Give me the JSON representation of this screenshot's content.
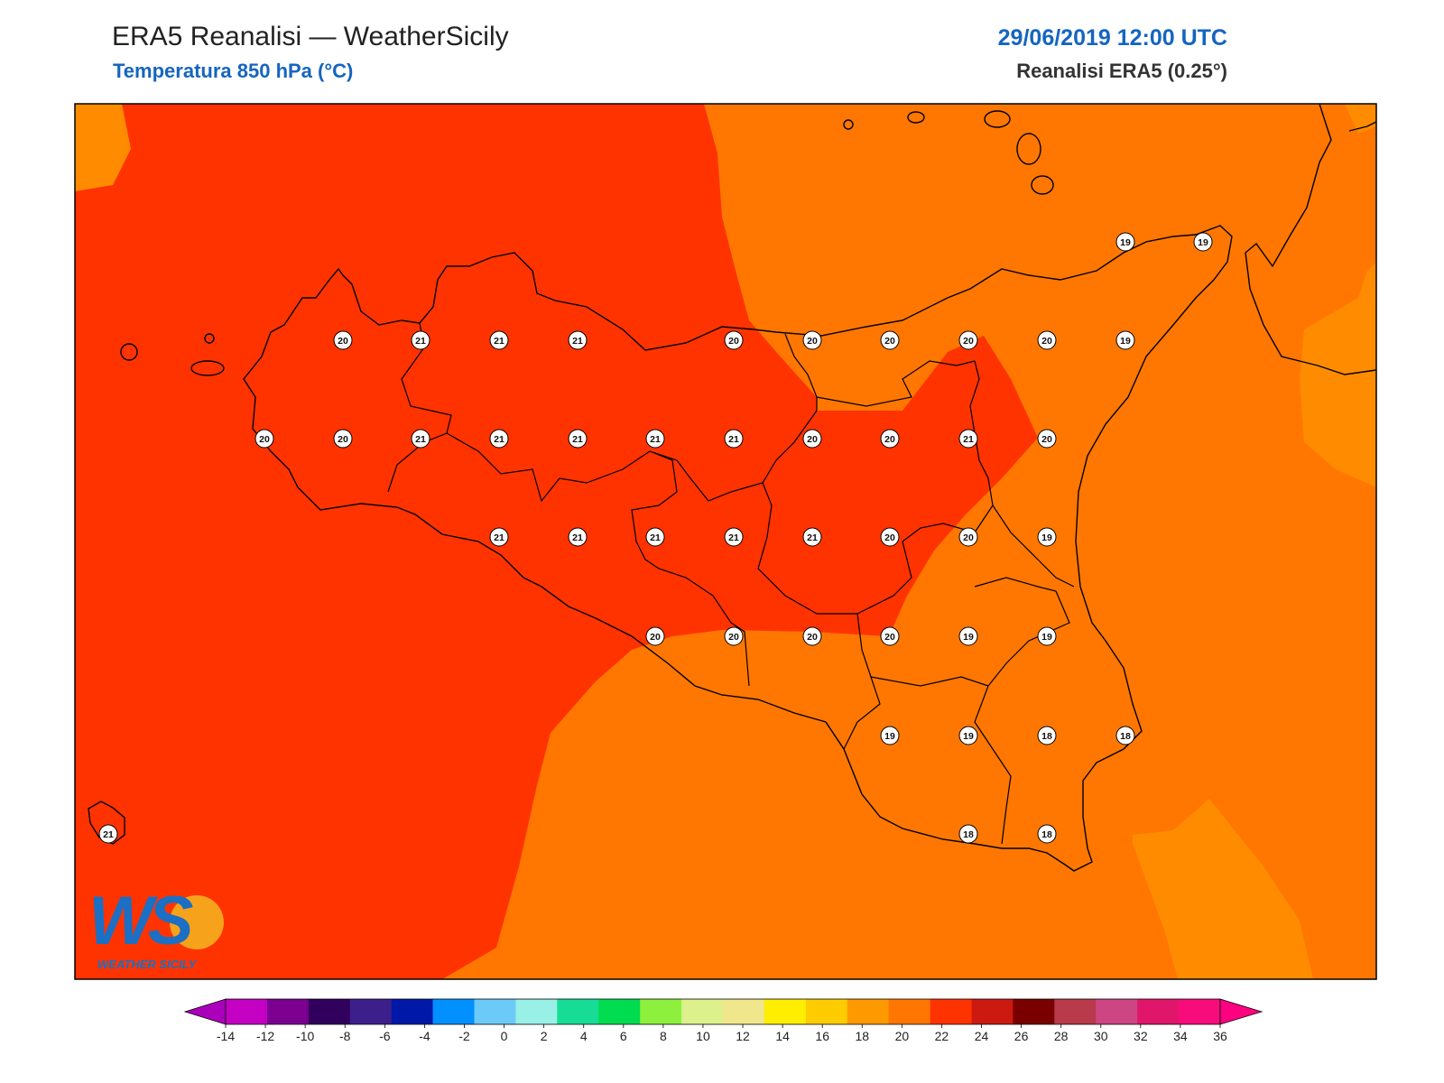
{
  "header": {
    "title": "ERA5 Reanalisi — WeatherSicily",
    "subtitle": "Temperatura 850 hPa (°C)",
    "datetime": "29/06/2019 12:00 UTC",
    "model": "Reanalisi ERA5 (0.25°)"
  },
  "logo": {
    "text": "WS",
    "name": "WEATHER SICILY"
  },
  "colors": {
    "band_16_18": "#ff8c00",
    "band_18_20": "#ff7700",
    "band_20_22": "#ff3300",
    "coastline": "#000000"
  },
  "colorbar": {
    "ticks": [
      "-14",
      "-12",
      "-10",
      "-8",
      "-6",
      "-4",
      "-2",
      "0",
      "2",
      "4",
      "6",
      "8",
      "10",
      "12",
      "14",
      "16",
      "18",
      "20",
      "22",
      "24",
      "26",
      "28",
      "30",
      "32",
      "34",
      "36"
    ],
    "colors": [
      "#aa00bb",
      "#c300c3",
      "#7b0092",
      "#30005c",
      "#3c1f8a",
      "#0018a8",
      "#0090ff",
      "#6ccaf8",
      "#98f0e6",
      "#16dc96",
      "#00dc50",
      "#8cf03c",
      "#dcf08c",
      "#f0e68c",
      "#ffee00",
      "#ffcc00",
      "#ff9900",
      "#ff7700",
      "#ff3300",
      "#cc1a10",
      "#7a0000",
      "#b83a4b",
      "#cd4683",
      "#e0166a",
      "#f80c7c",
      "#ff0080"
    ]
  },
  "grid_labels": [
    {
      "id": "r1c1",
      "value": "19"
    },
    {
      "id": "r1c2",
      "value": "19"
    },
    {
      "id": "r2c1",
      "value": "20"
    },
    {
      "id": "r2c2",
      "value": "21"
    },
    {
      "id": "r2c3",
      "value": "21"
    },
    {
      "id": "r2c4",
      "value": "21"
    },
    {
      "id": "r2c5",
      "value": "20"
    },
    {
      "id": "r2c6",
      "value": "20"
    },
    {
      "id": "r2c7",
      "value": "20"
    },
    {
      "id": "r2c8",
      "value": "20"
    },
    {
      "id": "r2c9",
      "value": "20"
    },
    {
      "id": "r2c10",
      "value": "19"
    },
    {
      "id": "r3c1",
      "value": "20"
    },
    {
      "id": "r3c2",
      "value": "20"
    },
    {
      "id": "r3c3",
      "value": "21"
    },
    {
      "id": "r3c4",
      "value": "21"
    },
    {
      "id": "r3c5",
      "value": "21"
    },
    {
      "id": "r3c6",
      "value": "21"
    },
    {
      "id": "r3c7",
      "value": "21"
    },
    {
      "id": "r3c8",
      "value": "20"
    },
    {
      "id": "r3c9",
      "value": "20"
    },
    {
      "id": "r3c10",
      "value": "21"
    },
    {
      "id": "r3c11",
      "value": "20"
    },
    {
      "id": "r4c1",
      "value": "21"
    },
    {
      "id": "r4c2",
      "value": "21"
    },
    {
      "id": "r4c3",
      "value": "21"
    },
    {
      "id": "r4c4",
      "value": "21"
    },
    {
      "id": "r4c5",
      "value": "21"
    },
    {
      "id": "r4c6",
      "value": "20"
    },
    {
      "id": "r4c7",
      "value": "20"
    },
    {
      "id": "r4c8",
      "value": "19"
    },
    {
      "id": "r5c1",
      "value": "20"
    },
    {
      "id": "r5c2",
      "value": "20"
    },
    {
      "id": "r5c3",
      "value": "20"
    },
    {
      "id": "r5c4",
      "value": "20"
    },
    {
      "id": "r5c5",
      "value": "19"
    },
    {
      "id": "r5c6",
      "value": "19"
    },
    {
      "id": "r6c1",
      "value": "19"
    },
    {
      "id": "r6c2",
      "value": "19"
    },
    {
      "id": "r6c3",
      "value": "18"
    },
    {
      "id": "r6c4",
      "value": "18"
    },
    {
      "id": "r7c1",
      "value": "18"
    },
    {
      "id": "r7c2",
      "value": "18"
    },
    {
      "id": "pantelleria",
      "value": "21"
    }
  ]
}
